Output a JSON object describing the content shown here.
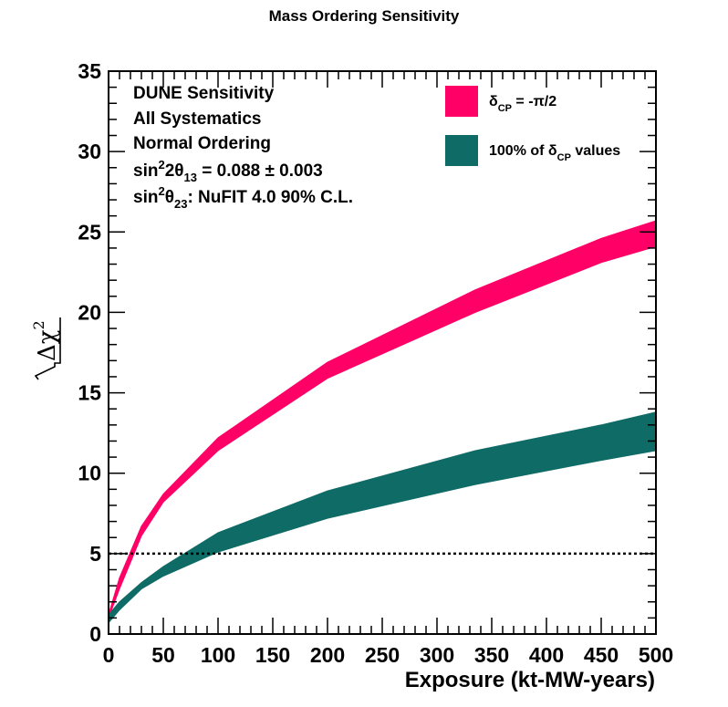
{
  "chart_data": {
    "type": "area",
    "title": "Mass Ordering Sensitivity",
    "xlabel": "Exposure (kt-MW-years)",
    "ylabel": {
      "symbol": "Δχ",
      "superscript": "2"
    },
    "xlim": [
      0,
      500
    ],
    "ylim": [
      0,
      35
    ],
    "x_ticks": [
      0,
      50,
      100,
      150,
      200,
      250,
      300,
      350,
      400,
      450,
      500
    ],
    "y_ticks": [
      0,
      5,
      10,
      15,
      20,
      25,
      30,
      35
    ],
    "reference_line": {
      "y": 5,
      "style": "dotted"
    },
    "annotations": [
      {
        "id": "line1",
        "parts": [
          {
            "t": "DUNE Sensitivity"
          }
        ]
      },
      {
        "id": "line2",
        "parts": [
          {
            "t": "All Systematics"
          }
        ]
      },
      {
        "id": "line3",
        "parts": [
          {
            "t": "Normal Ordering"
          }
        ]
      },
      {
        "id": "line4",
        "parts": [
          {
            "t": "sin"
          },
          {
            "t": "2",
            "sup": true
          },
          {
            "t": "2θ"
          },
          {
            "t": "13",
            "sub": true
          },
          {
            "t": " = 0.088 ± 0.003"
          }
        ]
      },
      {
        "id": "line5",
        "parts": [
          {
            "t": "sin"
          },
          {
            "t": "2",
            "sup": true
          },
          {
            "t": "θ"
          },
          {
            "t": "23",
            "sub": true
          },
          {
            "t": ": NuFIT 4.0 90% C.L."
          }
        ]
      }
    ],
    "legend": {
      "position": "top-right",
      "entries": [
        {
          "series": 0,
          "parts": [
            {
              "t": "δ"
            },
            {
              "t": "CP",
              "sub": true
            },
            {
              "t": " = -π/2"
            }
          ]
        },
        {
          "series": 1,
          "parts": [
            {
              "t": "100% of δ"
            },
            {
              "t": "CP",
              "sub": true
            },
            {
              "t": " values"
            }
          ]
        }
      ]
    },
    "series": [
      {
        "color": "#ff0066",
        "x": [
          0,
          10,
          30,
          50,
          100,
          200,
          335,
          450,
          500
        ],
        "upper": [
          1.2,
          3.5,
          6.7,
          8.7,
          12.2,
          16.9,
          21.4,
          24.6,
          25.7
        ],
        "lower": [
          1.0,
          2.8,
          6.1,
          8.2,
          11.4,
          15.9,
          20.0,
          23.1,
          24.1
        ]
      },
      {
        "color": "#0f6b66",
        "x": [
          0,
          10,
          30,
          50,
          100,
          200,
          335,
          450,
          500
        ],
        "upper": [
          1.2,
          2.0,
          3.2,
          4.2,
          6.3,
          8.9,
          11.4,
          13.0,
          13.8
        ],
        "lower": [
          0.7,
          1.5,
          2.8,
          3.6,
          5.1,
          7.2,
          9.3,
          10.8,
          11.4
        ]
      }
    ]
  }
}
